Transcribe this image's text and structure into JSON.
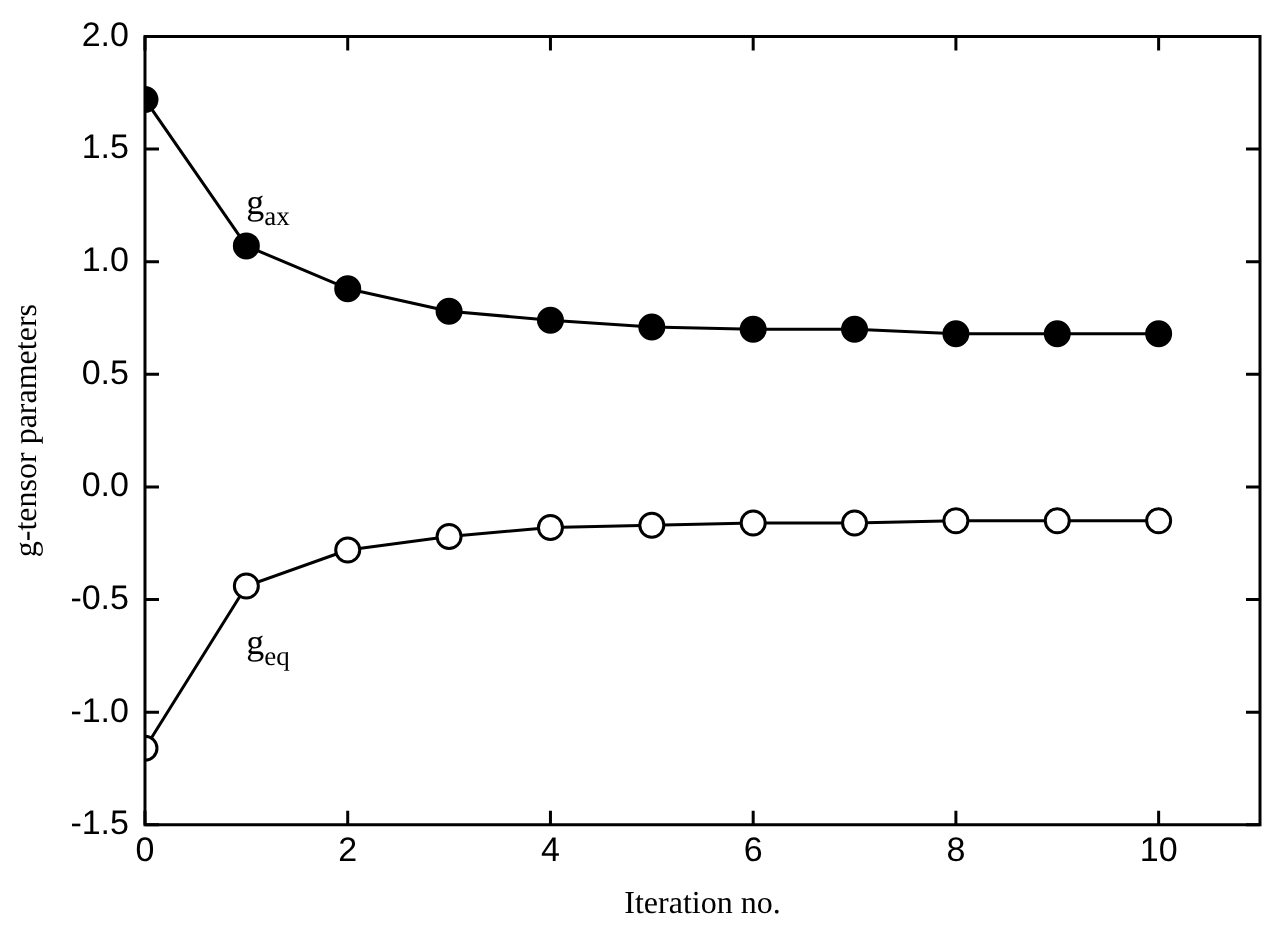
{
  "chart_data": {
    "type": "line",
    "xlabel": "Iteration no.",
    "ylabel": "g-tensor parameters",
    "x": [
      0,
      1,
      2,
      3,
      4,
      5,
      6,
      7,
      8,
      9,
      10
    ],
    "series": [
      {
        "name": "g$_{ax}$",
        "color": "#000000",
        "values": [
          1.72,
          1.07,
          0.88,
          0.78,
          0.74,
          0.71,
          0.7,
          0.7,
          0.68,
          0.68,
          0.68
        ]
      },
      {
        "name": "g$_{eq}$",
        "color": "#000000",
        "values": [
          -1.16,
          -0.44,
          -0.28,
          -0.22,
          -0.18,
          -0.17,
          -0.16,
          -0.16,
          -0.15,
          -0.15,
          -0.15
        ]
      }
    ],
    "xlim": [
      0,
      11
    ],
    "xticks": [
      0,
      2,
      4,
      6,
      8,
      10
    ],
    "ylim": [
      -1.5,
      2.0
    ],
    "yticks": [
      {
        "value": -1.5,
        "label": "-1.5"
      },
      {
        "value": -1.0,
        "label": "-1.0"
      },
      {
        "value": -0.5,
        "label": "-0.5"
      },
      {
        "value": 0,
        "label": "0.0"
      },
      {
        "value": 0.5,
        "label": "0.5"
      },
      {
        "value": 1.0,
        "label": "1.0"
      },
      {
        "value": 1.5,
        "label": "1.5"
      },
      {
        "value": 2.0,
        "label": "2.0"
      }
    ],
    "marker": "circle",
    "line_style": "solid",
    "grid": false,
    "legend": false
  }
}
